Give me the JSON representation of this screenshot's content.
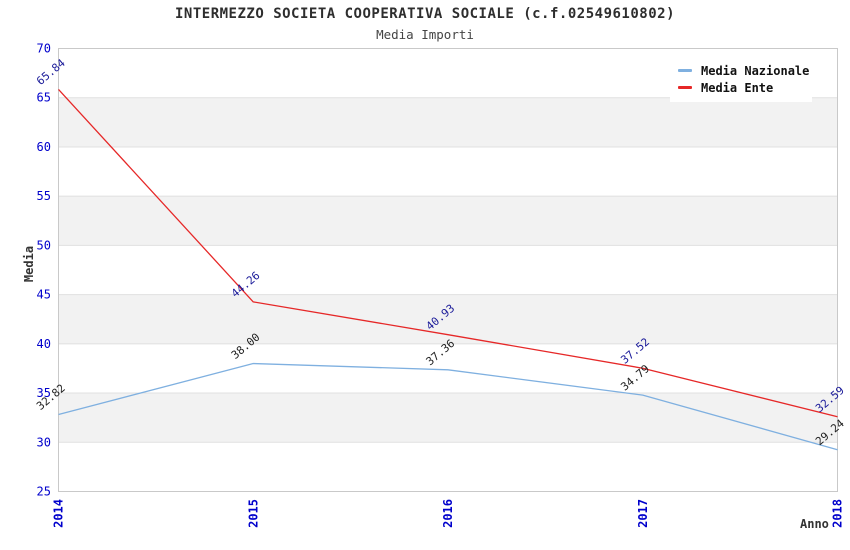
{
  "chart_data": {
    "type": "line",
    "title": "INTERMEZZO SOCIETA COOPERATIVA SOCIALE (c.f.02549610802)",
    "subtitle": "Media Importi",
    "xlabel": "Anno",
    "ylabel": "Media",
    "x": [
      "2014",
      "2015",
      "2016",
      "2017",
      "2018"
    ],
    "ylim": [
      25,
      70
    ],
    "ytick_step": 5,
    "yticks": [
      25,
      30,
      35,
      40,
      45,
      50,
      55,
      60,
      65,
      70
    ],
    "grid": "horizontal-bands-alternating",
    "legend_position": "top-right",
    "data_label_format": "two-decimals",
    "data_label_rotation_deg": -40,
    "series": [
      {
        "name": "Media Nazionale",
        "color": "#7fb0e0",
        "label_color": "#222222",
        "values": [
          32.82,
          38.0,
          37.36,
          34.79,
          29.24
        ]
      },
      {
        "name": "Media Ente",
        "color": "#e62828",
        "label_color": "#1a1a99",
        "values": [
          65.84,
          44.26,
          40.93,
          37.52,
          32.59
        ]
      }
    ],
    "colors": {
      "axis_tick": "#0000cc",
      "band_fill": "#f2f2f2",
      "gridline": "#e0e0e0",
      "plot_border": "#c9c9c9",
      "title_text": "#2e2e2e",
      "subtitle_text": "#444444",
      "axis_label_text": "#333333",
      "legend_text": "#111111",
      "background": "#ffffff"
    }
  }
}
